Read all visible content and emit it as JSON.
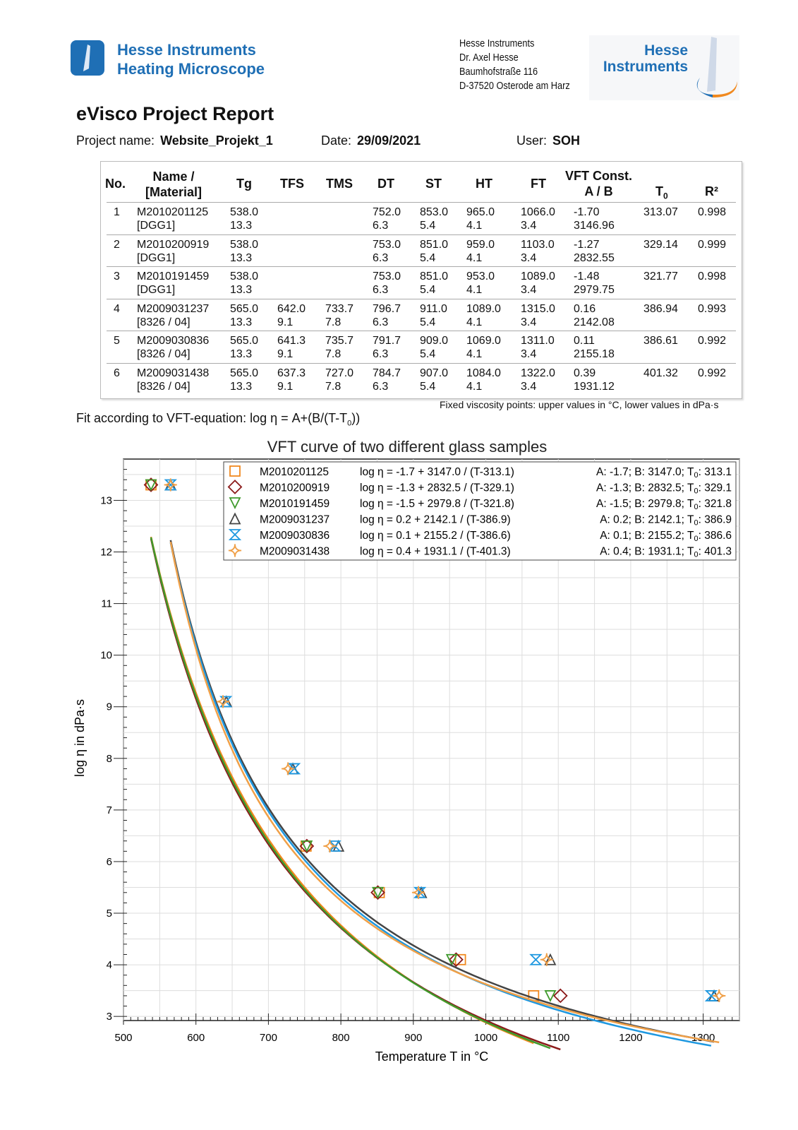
{
  "header": {
    "brand_line1": "Hesse Instruments",
    "brand_line2": "Heating Microscope",
    "address": [
      "Hesse Instruments",
      "Dr. Axel Hesse",
      "Baumhofstraße 116",
      "D-37520 Osterode am Harz"
    ],
    "logo_text1": "Hesse",
    "logo_text2": "Instruments"
  },
  "report": {
    "title": "eVisco Project Report",
    "project_label": "Project name:",
    "project": "Website_Projekt_1",
    "date_label": "Date:",
    "date": "29/09/2021",
    "user_label": "User:",
    "user": "SOH"
  },
  "table": {
    "headers": {
      "no": "No.",
      "name1": "Name /",
      "name2": "[Material]",
      "tg": "Tg",
      "tfs": "TFS",
      "tms": "TMS",
      "dt": "DT",
      "st": "ST",
      "ht": "HT",
      "ft": "FT",
      "vft1": "VFT Const.",
      "vft2": "A / B",
      "t0": "T",
      "t0sub": "0",
      "r2": "R²"
    },
    "rows": [
      {
        "no": "1",
        "name": "M2010201125",
        "material": "[DGG1]",
        "tg": [
          "538.0",
          "13.3"
        ],
        "tfs": [
          "",
          ""
        ],
        "tms": [
          "",
          ""
        ],
        "dt": [
          "752.0",
          "6.3"
        ],
        "st": [
          "853.0",
          "5.4"
        ],
        "ht": [
          "965.0",
          "4.1"
        ],
        "ft": [
          "1066.0",
          "3.4"
        ],
        "vft": [
          "-1.70",
          "3146.96"
        ],
        "t0": "313.07",
        "r2": "0.998"
      },
      {
        "no": "2",
        "name": "M2010200919",
        "material": "[DGG1]",
        "tg": [
          "538.0",
          "13.3"
        ],
        "tfs": [
          "",
          ""
        ],
        "tms": [
          "",
          ""
        ],
        "dt": [
          "753.0",
          "6.3"
        ],
        "st": [
          "851.0",
          "5.4"
        ],
        "ht": [
          "959.0",
          "4.1"
        ],
        "ft": [
          "1103.0",
          "3.4"
        ],
        "vft": [
          "-1.27",
          "2832.55"
        ],
        "t0": "329.14",
        "r2": "0.999"
      },
      {
        "no": "3",
        "name": "M2010191459",
        "material": "[DGG1]",
        "tg": [
          "538.0",
          "13.3"
        ],
        "tfs": [
          "",
          ""
        ],
        "tms": [
          "",
          ""
        ],
        "dt": [
          "753.0",
          "6.3"
        ],
        "st": [
          "851.0",
          "5.4"
        ],
        "ht": [
          "953.0",
          "4.1"
        ],
        "ft": [
          "1089.0",
          "3.4"
        ],
        "vft": [
          "-1.48",
          "2979.75"
        ],
        "t0": "321.77",
        "r2": "0.998"
      },
      {
        "no": "4",
        "name": "M2009031237",
        "material": "[8326 / 04]",
        "tg": [
          "565.0",
          "13.3"
        ],
        "tfs": [
          "642.0",
          "9.1"
        ],
        "tms": [
          "733.7",
          "7.8"
        ],
        "dt": [
          "796.7",
          "6.3"
        ],
        "st": [
          "911.0",
          "5.4"
        ],
        "ht": [
          "1089.0",
          "4.1"
        ],
        "ft": [
          "1315.0",
          "3.4"
        ],
        "vft": [
          "0.16",
          "2142.08"
        ],
        "t0": "386.94",
        "r2": "0.993"
      },
      {
        "no": "5",
        "name": "M2009030836",
        "material": "[8326 / 04]",
        "tg": [
          "565.0",
          "13.3"
        ],
        "tfs": [
          "641.3",
          "9.1"
        ],
        "tms": [
          "735.7",
          "7.8"
        ],
        "dt": [
          "791.7",
          "6.3"
        ],
        "st": [
          "909.0",
          "5.4"
        ],
        "ht": [
          "1069.0",
          "4.1"
        ],
        "ft": [
          "1311.0",
          "3.4"
        ],
        "vft": [
          "0.11",
          "2155.18"
        ],
        "t0": "386.61",
        "r2": "0.992"
      },
      {
        "no": "6",
        "name": "M2009031438",
        "material": "[8326 / 04]",
        "tg": [
          "565.0",
          "13.3"
        ],
        "tfs": [
          "637.3",
          "9.1"
        ],
        "tms": [
          "727.0",
          "7.8"
        ],
        "dt": [
          "784.7",
          "6.3"
        ],
        "st": [
          "907.0",
          "5.4"
        ],
        "ht": [
          "1084.0",
          "4.1"
        ],
        "ft": [
          "1322.0",
          "3.4"
        ],
        "vft": [
          "0.39",
          "1931.12"
        ],
        "t0": "401.32",
        "r2": "0.992"
      }
    ],
    "footnote": "Fixed viscosity points: upper values in °C, lower values in dPa·s"
  },
  "fit_note": "Fit according to VFT-equation: log η = A+(B/(T-T",
  "fit_note_sub": "0",
  "fit_note_end": "))",
  "chart_data": {
    "type": "line",
    "title": "VFT curve of two different glass samples",
    "xlabel": "Temperature T in °C",
    "ylabel": "log η in dPa·s",
    "xlim": [
      500,
      1350
    ],
    "ylim": [
      2.92,
      13.8
    ],
    "xticks": [
      500,
      600,
      700,
      800,
      900,
      1000,
      1100,
      1200,
      1300
    ],
    "yticks": [
      3,
      4,
      5,
      6,
      7,
      8,
      9,
      10,
      11,
      12,
      13
    ],
    "grid": true,
    "legend_position": "top-right",
    "series": [
      {
        "name": "M2010201125",
        "marker": "square",
        "color": "#f0891f",
        "equation": "log η = -1.7 + 3147.0 / (T-313.1)",
        "params": "A: -1.7; B: 3147.0; T",
        "t0": ": 313.1",
        "A": -1.7,
        "B": 3147.0,
        "T0": 313.1,
        "x": [
          538,
          752,
          853,
          965,
          1066
        ],
        "y": [
          13.3,
          6.3,
          5.4,
          4.1,
          3.4
        ]
      },
      {
        "name": "M2010200919",
        "marker": "diamond",
        "color": "#8b1a1a",
        "equation": "log η = -1.3 + 2832.5 / (T-329.1)",
        "params": "A: -1.3; B: 2832.5; T",
        "t0": ": 329.1",
        "A": -1.3,
        "B": 2832.5,
        "T0": 329.1,
        "x": [
          538,
          753,
          851,
          959,
          1103
        ],
        "y": [
          13.3,
          6.3,
          5.4,
          4.1,
          3.4
        ]
      },
      {
        "name": "M2010191459",
        "marker": "triangle-down",
        "color": "#3f9a2c",
        "equation": "log η = -1.5 + 2979.8 / (T-321.8)",
        "params": "A: -1.5; B: 2979.8; T",
        "t0": ": 321.8",
        "A": -1.5,
        "B": 2979.8,
        "T0": 321.8,
        "x": [
          538,
          753,
          851,
          953,
          1089
        ],
        "y": [
          13.3,
          6.3,
          5.4,
          4.1,
          3.4
        ]
      },
      {
        "name": "M2009031237",
        "marker": "triangle-up",
        "color": "#444444",
        "equation": "log η = 0.2 + 2142.1 / (T-386.9)",
        "params": "A: 0.2; B: 2142.1; T",
        "t0": ": 386.9",
        "A": 0.2,
        "B": 2142.1,
        "T0": 386.9,
        "x": [
          565,
          642,
          733.7,
          796.7,
          911,
          1089,
          1315
        ],
        "y": [
          13.3,
          9.1,
          7.8,
          6.3,
          5.4,
          4.1,
          3.4
        ]
      },
      {
        "name": "M2009030836",
        "marker": "hourglass",
        "color": "#1e98e0",
        "equation": "log η = 0.1 + 2155.2 / (T-386.6)",
        "params": "A: 0.1; B: 2155.2; T",
        "t0": ": 386.6",
        "A": 0.1,
        "B": 2155.2,
        "T0": 386.6,
        "x": [
          565,
          641.3,
          735.7,
          791.7,
          909,
          1069,
          1311
        ],
        "y": [
          13.3,
          9.1,
          7.8,
          6.3,
          5.4,
          4.1,
          3.4
        ]
      },
      {
        "name": "M2009031438",
        "marker": "star",
        "color": "#f0a048",
        "equation": "log η = 0.4 + 1931.1 / (T-401.3)",
        "params": "A: 0.4; B: 1931.1; T",
        "t0": ": 401.3",
        "A": 0.4,
        "B": 1931.1,
        "T0": 401.3,
        "x": [
          565,
          637.3,
          727,
          784.7,
          907,
          1084,
          1322
        ],
        "y": [
          13.3,
          9.1,
          7.8,
          6.3,
          5.4,
          4.1,
          3.4
        ]
      }
    ]
  }
}
